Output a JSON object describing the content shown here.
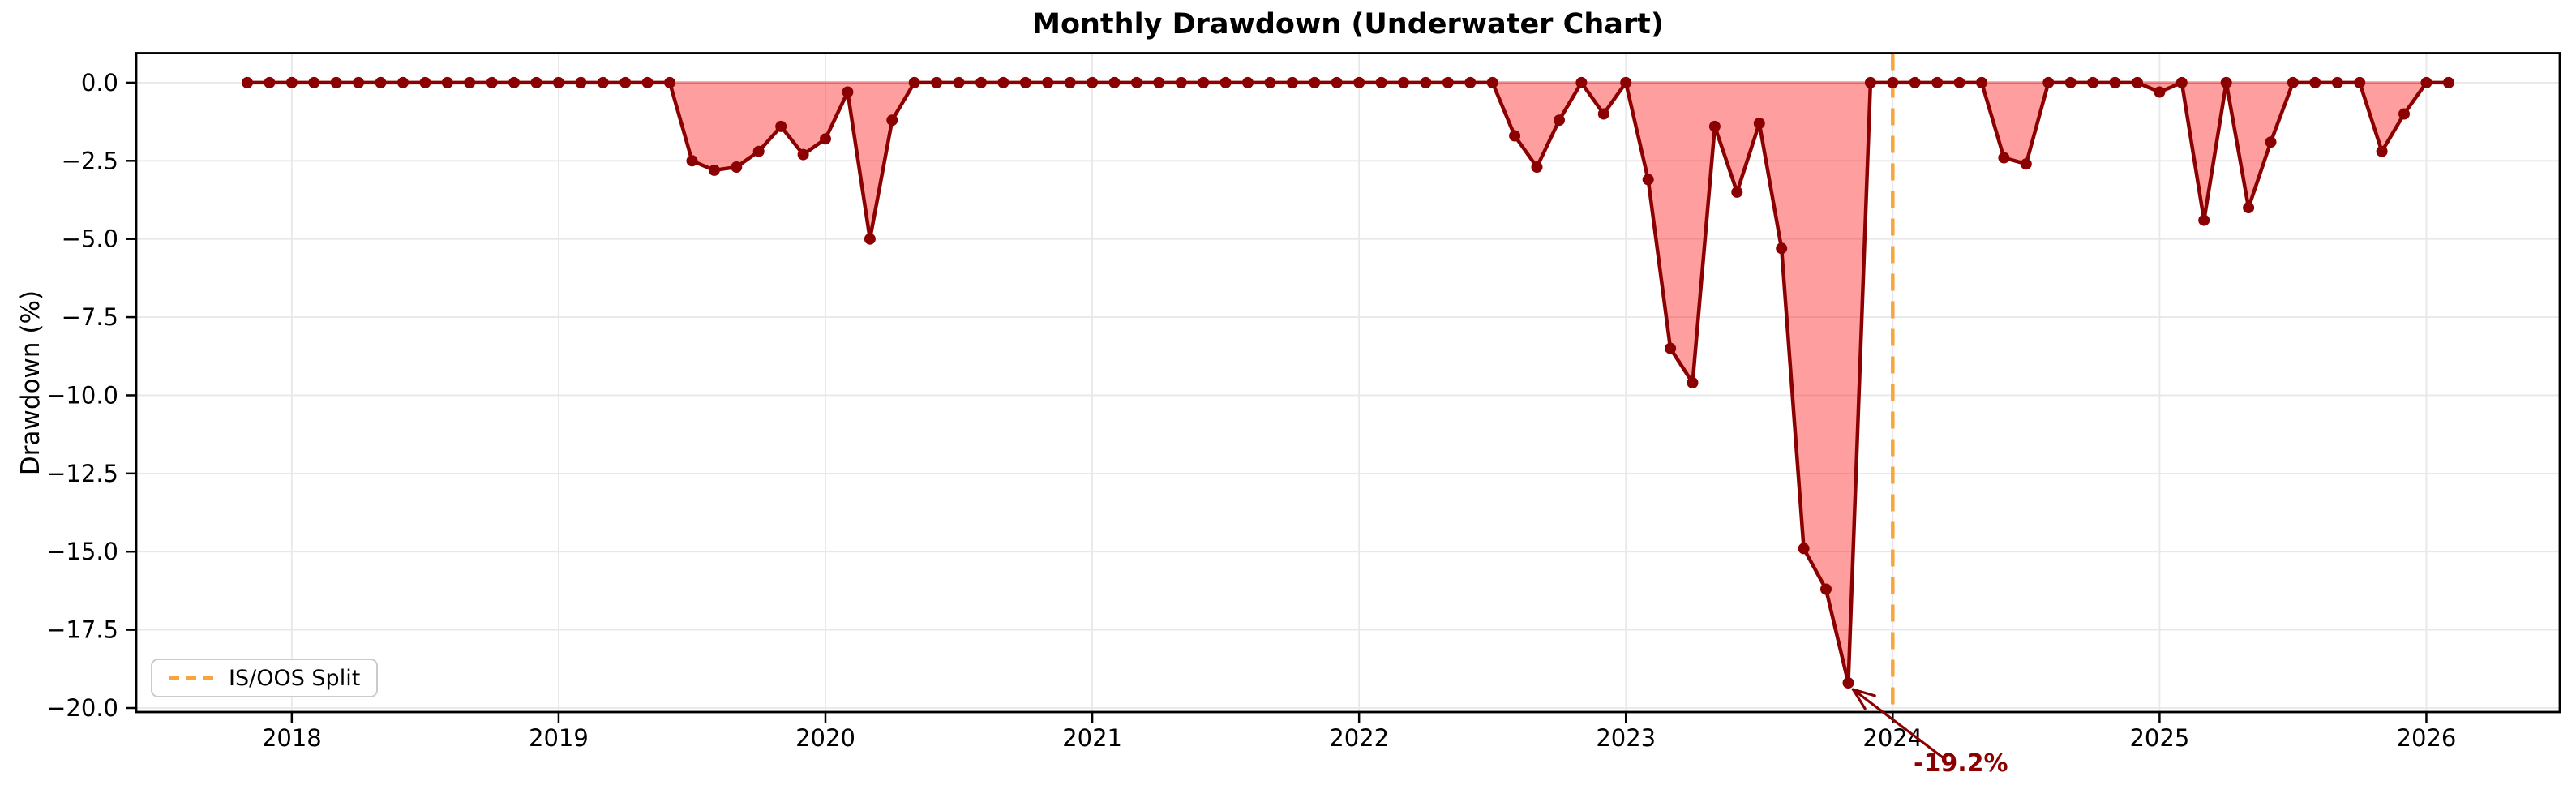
{
  "colors": {
    "line": "#8B0000",
    "marker": "#8B0000",
    "fill_rgba": "rgba(255,0,0,0.38)",
    "zero_edge_rgba": "rgba(255,45,45,0.45)",
    "split_line": "#FAA53C",
    "grid": "#E8E8E8",
    "spine": "#000000",
    "tick_text": "#000000",
    "annotation_text": "#8B0000"
  },
  "legend": {
    "position": "lower left",
    "items": [
      {
        "label": "IS/OOS Split",
        "line_color": "#FAA53C",
        "style": "dashed"
      }
    ]
  },
  "chart_data": {
    "type": "area",
    "title": "Monthly Drawdown (Underwater Chart)",
    "xlabel": "",
    "ylabel": "Drawdown (%)",
    "grid": true,
    "xlim": [
      2017.417,
      2026.5
    ],
    "ylim": [
      0.945,
      -20.13
    ],
    "x_tick_values": [
      2018,
      2019,
      2020,
      2021,
      2022,
      2023,
      2024,
      2025,
      2026
    ],
    "x_tick_labels": [
      "2018",
      "2019",
      "2020",
      "2021",
      "2022",
      "2023",
      "2024",
      "2025",
      "2026"
    ],
    "y_ticks": [
      0,
      -2.5,
      -5,
      -7.5,
      -10,
      -12.5,
      -15,
      -17.5,
      -20
    ],
    "y_tick_labels": [
      "0.0",
      "−2.5",
      "−5.0",
      "−7.5",
      "−10.0",
      "−12.5",
      "−15.0",
      "−17.5",
      "−20.0"
    ],
    "split_x": 2024.0,
    "annotation": {
      "text": "-19.2%",
      "month": "2023-11",
      "value": -19.2
    },
    "months": [
      "2017-11",
      "2017-12",
      "2018-01",
      "2018-02",
      "2018-03",
      "2018-04",
      "2018-05",
      "2018-06",
      "2018-07",
      "2018-08",
      "2018-09",
      "2018-10",
      "2018-11",
      "2018-12",
      "2019-01",
      "2019-02",
      "2019-03",
      "2019-04",
      "2019-05",
      "2019-06",
      "2019-07",
      "2019-08",
      "2019-09",
      "2019-10",
      "2019-11",
      "2019-12",
      "2020-01",
      "2020-02",
      "2020-03",
      "2020-04",
      "2020-05",
      "2020-06",
      "2020-07",
      "2020-08",
      "2020-09",
      "2020-10",
      "2020-11",
      "2020-12",
      "2021-01",
      "2021-02",
      "2021-03",
      "2021-04",
      "2021-05",
      "2021-06",
      "2021-07",
      "2021-08",
      "2021-09",
      "2021-10",
      "2021-11",
      "2021-12",
      "2022-01",
      "2022-02",
      "2022-03",
      "2022-04",
      "2022-05",
      "2022-06",
      "2022-07",
      "2022-08",
      "2022-09",
      "2022-10",
      "2022-11",
      "2022-12",
      "2023-01",
      "2023-02",
      "2023-03",
      "2023-04",
      "2023-05",
      "2023-06",
      "2023-07",
      "2023-08",
      "2023-09",
      "2023-10",
      "2023-11",
      "2023-12",
      "2024-01",
      "2024-02",
      "2024-03",
      "2024-04",
      "2024-05",
      "2024-06",
      "2024-07",
      "2024-08",
      "2024-09",
      "2024-10",
      "2024-11",
      "2024-12",
      "2025-01",
      "2025-02",
      "2025-03",
      "2025-04",
      "2025-05",
      "2025-06",
      "2025-07",
      "2025-08",
      "2025-09",
      "2025-10",
      "2025-11",
      "2025-12",
      "2026-01",
      "2026-02"
    ],
    "values": [
      0,
      0,
      0,
      0,
      0,
      0,
      0,
      0,
      0,
      0,
      0,
      0,
      0,
      0,
      0,
      0,
      0,
      0,
      0,
      0,
      -2.5,
      -2.8,
      -2.7,
      -2.2,
      -1.4,
      -2.3,
      -1.8,
      -0.3,
      -5.0,
      -1.2,
      0,
      0,
      0,
      0,
      0,
      0,
      0,
      0,
      0,
      0,
      0,
      0,
      0,
      0,
      0,
      0,
      0,
      0,
      0,
      0,
      0,
      0,
      0,
      0,
      0,
      0,
      0,
      -1.7,
      -2.7,
      -1.2,
      0,
      -1.0,
      0,
      -3.1,
      -8.5,
      -9.6,
      -1.4,
      -3.5,
      -1.3,
      -5.3,
      -14.9,
      -16.2,
      -19.2,
      0,
      0,
      0,
      0,
      0,
      0,
      -2.4,
      -2.6,
      0,
      0,
      0,
      0,
      0,
      -0.3,
      0,
      -4.4,
      0,
      -4.0,
      -1.9,
      0,
      0,
      0,
      0,
      -2.2,
      -1.0,
      0,
      0
    ]
  }
}
